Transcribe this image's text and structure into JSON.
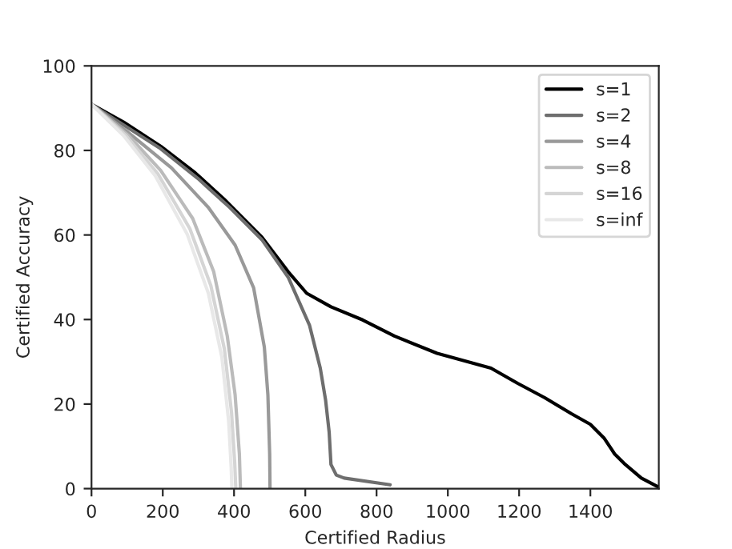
{
  "chart_data": {
    "type": "line",
    "xlabel": "Certified Radius",
    "ylabel": "Certified Accuracy",
    "xlim": [
      0,
      1592
    ],
    "ylim": [
      0,
      100
    ],
    "xticks": [
      0,
      200,
      400,
      600,
      800,
      1000,
      1200,
      1400
    ],
    "yticks": [
      0,
      20,
      40,
      60,
      80,
      100
    ],
    "grid": false,
    "legend": "top right",
    "line_style": "solid",
    "marker": "none",
    "series": [
      {
        "name": "s=1",
        "color": "#000000",
        "x": [
          0,
          90,
          194,
          291,
          373,
          478,
          552,
          604,
          672,
          761,
          850,
          970,
          1121,
          1196,
          1272,
          1347,
          1400,
          1438,
          1468,
          1498,
          1543,
          1590
        ],
        "values": [
          90.9,
          86.7,
          81,
          74.7,
          68.4,
          59.5,
          51.3,
          46.2,
          43,
          39.9,
          36.1,
          32,
          28.5,
          24.9,
          21.5,
          17.7,
          15.2,
          12,
          8.2,
          5.7,
          2.5,
          0.4
        ]
      },
      {
        "name": "s=2",
        "color": "#6e6e6e",
        "x": [
          0,
          194,
          298,
          388,
          478,
          552,
          612,
          642,
          657,
          667,
          672,
          687,
          709,
          838
        ],
        "values": [
          90.9,
          80.4,
          73.4,
          66.5,
          58.9,
          50,
          38.6,
          28.5,
          20.9,
          13.3,
          5.7,
          3.2,
          2.5,
          0.9
        ]
      },
      {
        "name": "s=4",
        "color": "#999999",
        "x": [
          0,
          104,
          224,
          328,
          403,
          455,
          485,
          495,
          500,
          501
        ],
        "values": [
          90.9,
          84.2,
          75.9,
          66.5,
          57.6,
          47.5,
          33.5,
          22.2,
          8.2,
          0
        ]
      },
      {
        "name": "s=8",
        "color": "#bbbbbb",
        "x": [
          0,
          104,
          194,
          284,
          343,
          381,
          403,
          415,
          418
        ],
        "values": [
          90.9,
          83.5,
          75.3,
          63.9,
          51.3,
          36.1,
          22.2,
          8.2,
          0
        ]
      },
      {
        "name": "s=16",
        "color": "#d5d5d5",
        "x": [
          0,
          97,
          186,
          276,
          335,
          373,
          393,
          402,
          405
        ],
        "values": [
          90.9,
          83.5,
          74.5,
          61.5,
          48,
          33,
          18,
          6,
          0
        ]
      },
      {
        "name": "s=inf",
        "color": "#e8e8e8",
        "x": [
          0,
          90,
          179,
          269,
          328,
          366,
          385,
          392,
          394
        ],
        "values": [
          90.9,
          83.5,
          74,
          60.1,
          46.2,
          31,
          15.8,
          5,
          0
        ]
      }
    ]
  }
}
